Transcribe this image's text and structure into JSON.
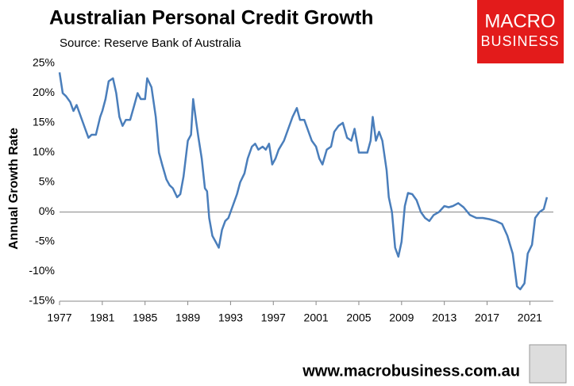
{
  "chart_data": {
    "type": "line",
    "title": "Australian Personal Credit Growth",
    "subtitle": "Source: Reserve Bank of Australia",
    "y_label": "Annual Growth Rate",
    "logo": [
      "MACRO",
      "BUSINESS"
    ],
    "footer": "www.macrobusiness.com.au",
    "color": "#4a7ebb",
    "x": [
      1977.0,
      1977.3,
      1977.6,
      1978.0,
      1978.3,
      1978.6,
      1979.0,
      1979.4,
      1979.7,
      1980.0,
      1980.4,
      1980.8,
      1981.0,
      1981.3,
      1981.6,
      1982.0,
      1982.3,
      1982.6,
      1982.9,
      1983.2,
      1983.6,
      1984.0,
      1984.3,
      1984.6,
      1985.0,
      1985.2,
      1985.6,
      1986.0,
      1986.3,
      1986.6,
      1987.0,
      1987.3,
      1987.6,
      1988.0,
      1988.3,
      1988.6,
      1989.0,
      1989.3,
      1989.5,
      1989.8,
      1990.0,
      1990.3,
      1990.6,
      1990.8,
      1991.0,
      1991.3,
      1991.6,
      1991.9,
      1992.2,
      1992.5,
      1992.8,
      1993.2,
      1993.6,
      1993.9,
      1994.3,
      1994.6,
      1995.0,
      1995.3,
      1995.6,
      1996.0,
      1996.3,
      1996.6,
      1996.9,
      1997.2,
      1997.5,
      1998.0,
      1998.4,
      1998.8,
      1999.2,
      1999.5,
      1999.9,
      2000.2,
      2000.6,
      2001.0,
      2001.3,
      2001.6,
      2002.0,
      2002.4,
      2002.7,
      2003.1,
      2003.5,
      2003.9,
      2004.3,
      2004.6,
      2005.0,
      2005.4,
      2005.8,
      2006.1,
      2006.3,
      2006.6,
      2006.9,
      2007.2,
      2007.6,
      2007.8,
      2008.1,
      2008.4,
      2008.7,
      2009.0,
      2009.3,
      2009.6,
      2010.0,
      2010.4,
      2010.8,
      2011.2,
      2011.6,
      2012.0,
      2012.5,
      2013.0,
      2013.4,
      2013.8,
      2014.3,
      2014.8,
      2015.4,
      2016.0,
      2016.6,
      2017.2,
      2017.8,
      2018.4,
      2018.9,
      2019.4,
      2019.8,
      2020.1,
      2020.5,
      2020.8,
      2021.2,
      2021.5,
      2021.9,
      2022.3,
      2022.6
    ],
    "values": [
      23.5,
      20,
      19.5,
      18.5,
      17,
      18,
      16,
      14,
      12.5,
      13,
      13,
      16,
      17,
      19,
      22,
      22.5,
      20,
      16,
      14.5,
      15.5,
      15.5,
      18,
      20,
      19,
      19,
      22.5,
      21,
      16,
      10,
      8,
      5.5,
      4.5,
      4,
      2.5,
      3,
      6,
      12,
      13,
      19,
      15,
      12.5,
      9,
      4,
      3.5,
      -1,
      -4,
      -5,
      -6,
      -3,
      -1.5,
      -1,
      1,
      3,
      5,
      6.5,
      9,
      11,
      11.5,
      10.5,
      11,
      10.5,
      11.5,
      8,
      9,
      10.5,
      12,
      14,
      16,
      17.5,
      15.5,
      15.5,
      14,
      12,
      11,
      9,
      8,
      10.5,
      11,
      13.5,
      14.5,
      15,
      12.5,
      12,
      14,
      10,
      10,
      10,
      12,
      16,
      12,
      13.5,
      12,
      7,
      2.5,
      0,
      -6,
      -7.5,
      -5,
      1,
      3.2,
      3,
      2,
      0,
      -1,
      -1.5,
      -0.5,
      0,
      1,
      0.8,
      1,
      1.5,
      0.8,
      -0.5,
      -1,
      -1,
      -1.2,
      -1.5,
      -2,
      -4,
      -7,
      -12.5,
      -13,
      -12,
      -7,
      -5.5,
      -1,
      0,
      0.5,
      2.5
    ],
    "xlim": [
      1977,
      2023.2
    ],
    "xticks": [
      1977,
      1981,
      1985,
      1989,
      1993,
      1997,
      2001,
      2005,
      2009,
      2013,
      2017,
      2021
    ],
    "ylim": [
      -15,
      25
    ],
    "yticks": [
      {
        "value": -15,
        "label": "-15%"
      },
      {
        "value": -10,
        "label": "-10%"
      },
      {
        "value": -5,
        "label": "-5%"
      },
      {
        "value": 0,
        "label": "0%"
      },
      {
        "value": 5,
        "label": "5%"
      },
      {
        "value": 10,
        "label": "10%"
      },
      {
        "value": 15,
        "label": "15%"
      },
      {
        "value": 20,
        "label": "20%"
      },
      {
        "value": 25,
        "label": "25%"
      }
    ]
  }
}
